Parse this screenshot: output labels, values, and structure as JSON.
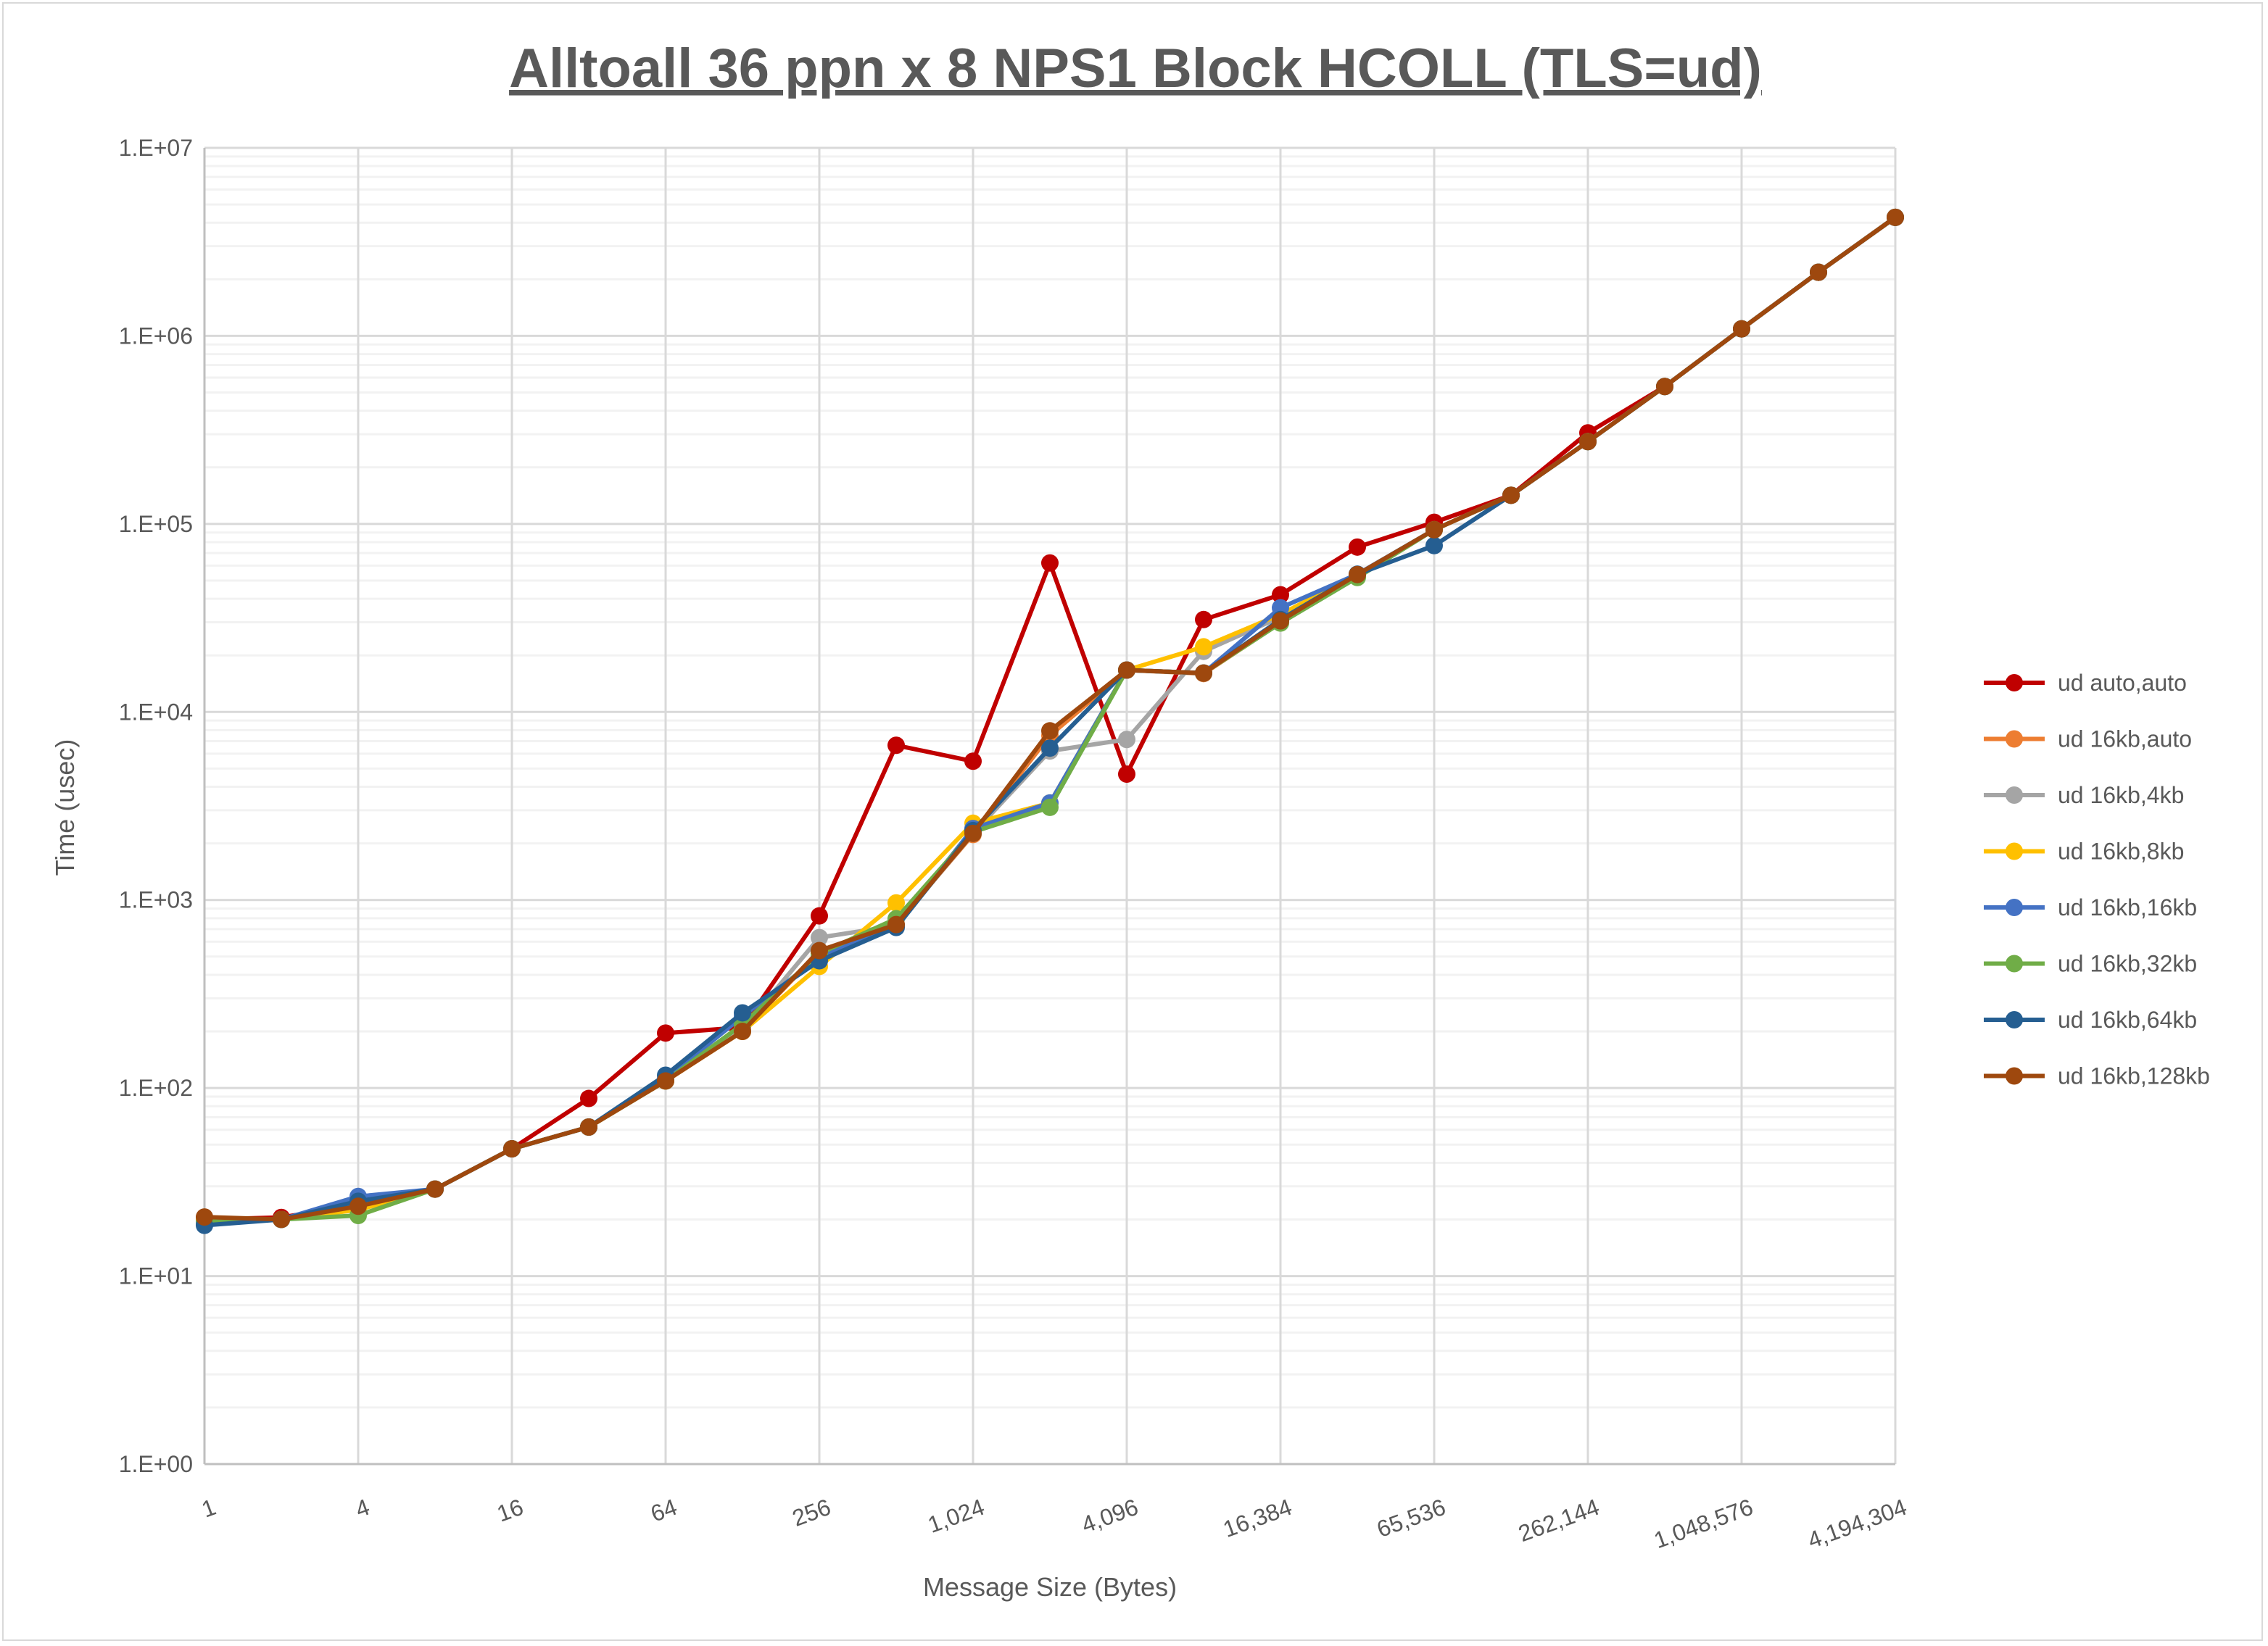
{
  "chart_data": {
    "type": "line",
    "title": "Alltoall 36 ppn x 8 NPS1 Block HCOLL (TLS=ud)",
    "xlabel": "Message Size (Bytes)",
    "ylabel": "Time (usec)",
    "x_scale": "log2",
    "y_scale": "log10",
    "xlim": [
      1,
      4194304
    ],
    "ylim": [
      1,
      10000000
    ],
    "grid": true,
    "legend_position": "right",
    "x_tick_labels": [
      "1",
      "4",
      "16",
      "64",
      "256",
      "1,024",
      "4,096",
      "16,384",
      "65,536",
      "262,144",
      "1,048,576",
      "4,194,304"
    ],
    "y_tick_labels": [
      "1.E+00",
      "1.E+01",
      "1.E+02",
      "1.E+03",
      "1.E+04",
      "1.E+05",
      "1.E+06",
      "1.E+07"
    ],
    "x": [
      1,
      2,
      4,
      8,
      16,
      32,
      64,
      128,
      256,
      512,
      1024,
      2048,
      4096,
      8192,
      16384,
      32768,
      65536,
      131072,
      262144,
      524288,
      1048576,
      2097152,
      4194304
    ],
    "series": [
      {
        "name": "ud auto,auto",
        "color": "#c00000",
        "values": [
          20,
          20.5,
          24,
          29,
          47.5,
          88,
          196,
          210,
          823,
          6650,
          5470,
          62000,
          4670,
          31000,
          42000,
          75300,
          102000,
          142000,
          305000,
          538000,
          1090000,
          2180000,
          4270000
        ]
      },
      {
        "name": "ud 16kb,auto",
        "color": "#ed7d31",
        "values": [
          20.5,
          20,
          23.5,
          29,
          47.5,
          62,
          109,
          200,
          530,
          740,
          2230,
          7500,
          16700,
          16000,
          29800,
          53500,
          93000,
          142000,
          274000,
          538000,
          1090000,
          2180000,
          4270000
        ]
      },
      {
        "name": "ud 16kb,4kb",
        "color": "#a5a5a5",
        "values": [
          20,
          20,
          23.8,
          29,
          47.5,
          62,
          109,
          205,
          631,
          730,
          2260,
          6200,
          7140,
          21000,
          32000,
          53800,
          93100,
          142000,
          274000,
          538000,
          1090000,
          2180000,
          4270000
        ]
      },
      {
        "name": "ud 16kb,8kb",
        "color": "#ffc000",
        "values": [
          20,
          20,
          22.5,
          29,
          47.5,
          62,
          109,
          200,
          443,
          965,
          2560,
          3280,
          16700,
          22200,
          33000,
          53800,
          93100,
          142000,
          274000,
          538000,
          1090000,
          2180000,
          4270000
        ]
      },
      {
        "name": "ud 16kb,16kb",
        "color": "#4472c4",
        "values": [
          19,
          20,
          26.5,
          29,
          47.5,
          62,
          112,
          240,
          497,
          730,
          2400,
          3280,
          16700,
          16100,
          35800,
          54000,
          93100,
          142000,
          274000,
          538000,
          1090000,
          2180000,
          4270000
        ]
      },
      {
        "name": "ud 16kb,32kb",
        "color": "#70ad47",
        "values": [
          19.5,
          20,
          21,
          29,
          47.5,
          62,
          109,
          218,
          519,
          795,
          2300,
          3110,
          16700,
          16100,
          29700,
          51900,
          93100,
          142000,
          274000,
          538000,
          1090000,
          2180000,
          4270000
        ]
      },
      {
        "name": "ud 16kb,64kb",
        "color": "#255e91",
        "values": [
          18.6,
          20,
          25,
          29,
          47.5,
          62,
          117,
          251,
          475,
          714,
          2340,
          6420,
          16700,
          16100,
          31000,
          54000,
          76700,
          142000,
          274000,
          538000,
          1090000,
          2180000,
          4270000
        ]
      },
      {
        "name": "ud 16kb,128kb",
        "color": "#9e480e",
        "values": [
          20.6,
          20,
          23.5,
          29,
          47.5,
          62,
          109,
          200,
          538,
          740,
          2260,
          7940,
          16700,
          16100,
          30500,
          53800,
          93100,
          142000,
          274000,
          538000,
          1090000,
          2180000,
          4270000
        ]
      }
    ]
  }
}
